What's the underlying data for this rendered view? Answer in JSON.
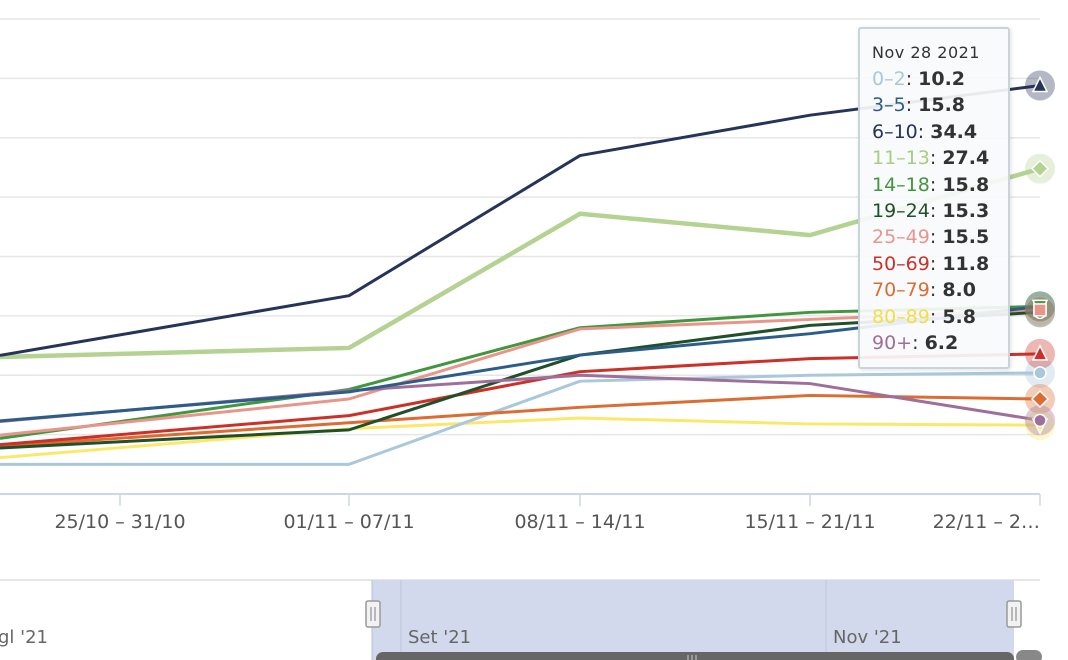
{
  "chart_data": {
    "type": "line",
    "categories": [
      "25/10 – 31/10",
      "01/11 – 07/11",
      "08/11 – 14/11",
      "15/11 – 21/11",
      "22/11 – 2…"
    ],
    "ylim": [
      0,
      40
    ],
    "grid": true,
    "series": [
      {
        "name": "0–2",
        "color": "#a9c8da",
        "values": [
          2.5,
          2.5,
          9.5,
          10.0,
          10.2
        ]
      },
      {
        "name": "3–5",
        "color": "#2c5d8a",
        "values": [
          7.0,
          8.6,
          11.7,
          13.5,
          15.8
        ]
      },
      {
        "name": "6–10",
        "color": "#27345a",
        "values": [
          13.4,
          16.7,
          28.5,
          31.9,
          34.4
        ]
      },
      {
        "name": "11–13",
        "color": "#b4d292",
        "values": [
          11.8,
          12.3,
          23.6,
          21.8,
          27.4
        ]
      },
      {
        "name": "14–18",
        "color": "#41963f",
        "values": [
          6.1,
          8.8,
          14.0,
          15.3,
          15.8
        ]
      },
      {
        "name": "19–24",
        "color": "#20502a",
        "values": [
          4.4,
          5.4,
          11.7,
          14.2,
          15.3
        ]
      },
      {
        "name": "25–49",
        "color": "#e8958c",
        "values": [
          6.0,
          8.0,
          13.9,
          14.7,
          15.5
        ]
      },
      {
        "name": "50–69",
        "color": "#cc3128",
        "values": [
          5.0,
          6.6,
          10.3,
          11.4,
          11.8
        ]
      },
      {
        "name": "70–79",
        "color": "#dc6c32",
        "values": [
          4.7,
          6.0,
          7.3,
          8.3,
          8.0
        ]
      },
      {
        "name": "80–89",
        "color": "#fbe86a",
        "values": [
          3.9,
          5.5,
          6.4,
          5.9,
          5.8
        ]
      },
      {
        "name": "90+",
        "color": "#9e6f9a",
        "values": [
          7.0,
          8.7,
          10.0,
          9.3,
          6.2
        ]
      }
    ],
    "tooltip_date": "Nov 28 2021",
    "navigator_labels": [
      "gl '21",
      "Set '21",
      "Nov '21"
    ]
  },
  "tooltip": {
    "date": "Nov 28 2021",
    "rows": [
      {
        "label": "0–2",
        "value": "10.2",
        "color": "#a9c8da"
      },
      {
        "label": "3–5",
        "value": "15.8",
        "color": "#2c5d8a"
      },
      {
        "label": "6–10",
        "value": "34.4",
        "color": "#27345a"
      },
      {
        "label": "11–13",
        "value": "27.4",
        "color": "#a8cc82"
      },
      {
        "label": "14–18",
        "value": "15.8",
        "color": "#41963f"
      },
      {
        "label": "19–24",
        "value": "15.3",
        "color": "#20502a"
      },
      {
        "label": "25–49",
        "value": "15.5",
        "color": "#e8958c"
      },
      {
        "label": "50–69",
        "value": "11.8",
        "color": "#cc3128"
      },
      {
        "label": "70–79",
        "value": "8.0",
        "color": "#dc6c32"
      },
      {
        "label": "80–89",
        "value": "5.8",
        "color": "#f3de48"
      },
      {
        "label": "90+",
        "value": "6.2",
        "color": "#9e6f9a"
      }
    ]
  }
}
